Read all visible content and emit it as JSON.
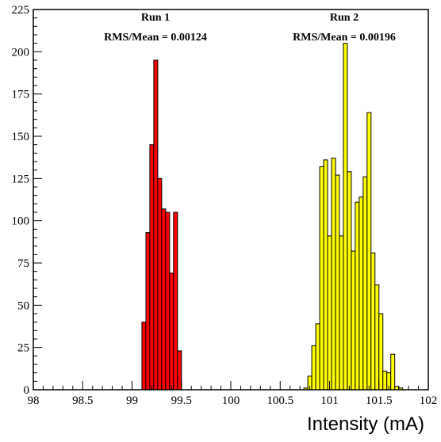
{
  "chart_data": {
    "type": "bar",
    "xlabel": "Intensity (mA)",
    "ylabel": "",
    "xlim": [
      98,
      102
    ],
    "ylim": [
      0,
      225
    ],
    "bin_width": 0.04,
    "x_ticks": [
      "98",
      "98.5",
      "99",
      "99.5",
      "100",
      "100.5",
      "101",
      "101.5",
      "102"
    ],
    "y_ticks": [
      "0",
      "25",
      "50",
      "75",
      "100",
      "125",
      "150",
      "175",
      "200",
      "225"
    ],
    "annotations": [
      {
        "run": "Run 1",
        "stat": "RMS/Mean = 0.00124"
      },
      {
        "run": "Run 2",
        "stat": "RMS/Mean = 0.00196"
      }
    ],
    "series": [
      {
        "color": "#ff0000",
        "x": [
          99.06,
          99.1,
          99.14,
          99.18,
          99.22,
          99.26,
          99.3,
          99.34,
          99.38,
          99.42,
          99.46,
          99.5,
          99.54,
          99.58
        ],
        "values": [
          0,
          40,
          93,
          145,
          195,
          125,
          107,
          105,
          69,
          105,
          23,
          0,
          0,
          0
        ]
      },
      {
        "color": "#ffff00",
        "x": [
          100.7,
          100.74,
          100.78,
          100.82,
          100.86,
          100.9,
          100.94,
          100.98,
          101.02,
          101.06,
          101.1,
          101.14,
          101.18,
          101.22,
          101.26,
          101.3,
          101.34,
          101.38,
          101.42,
          101.46,
          101.5,
          101.54,
          101.58,
          101.62,
          101.66,
          101.7,
          101.74,
          101.78,
          101.82
        ],
        "values": [
          0,
          1,
          8,
          26,
          39,
          132,
          136,
          91,
          137,
          127,
          91,
          205,
          129,
          82,
          111,
          114,
          126,
          164,
          81,
          62,
          45,
          11,
          10,
          21,
          2,
          1,
          0,
          0,
          0
        ]
      }
    ]
  }
}
